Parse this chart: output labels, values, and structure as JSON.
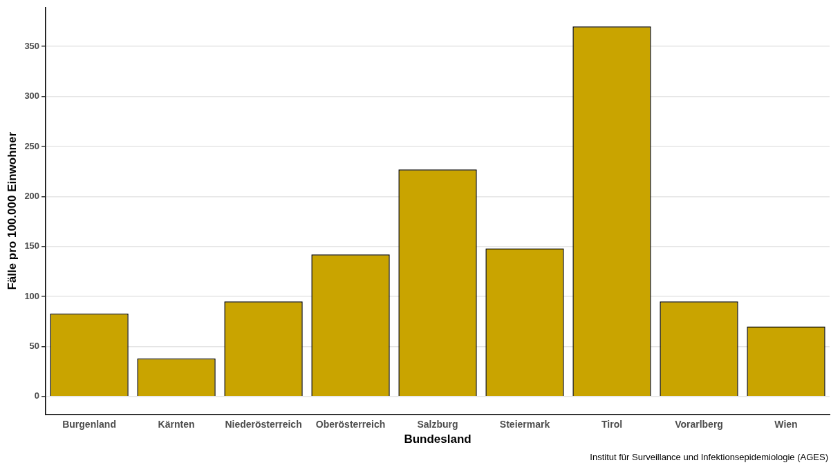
{
  "chart_data": {
    "type": "bar",
    "xlabel": "Bundesland",
    "ylabel": "Fälle pro 100.000 Einwohner",
    "categories": [
      "Burgenland",
      "Kärnten",
      "Niederösterreich",
      "Oberösterreich",
      "Salzburg",
      "Steiermark",
      "Tirol",
      "Vorarlberg",
      "Wien"
    ],
    "values": [
      83,
      38,
      95,
      142,
      227,
      148,
      370,
      95,
      70
    ],
    "color": "#c9a400",
    "ylim": [
      -18,
      389
    ],
    "yticks": [
      0,
      50,
      100,
      150,
      200,
      250,
      300,
      350
    ],
    "grid": "y",
    "annotations": [
      "Institut für Surveillance und Infektionsepidemiologie (AGES)"
    ]
  }
}
